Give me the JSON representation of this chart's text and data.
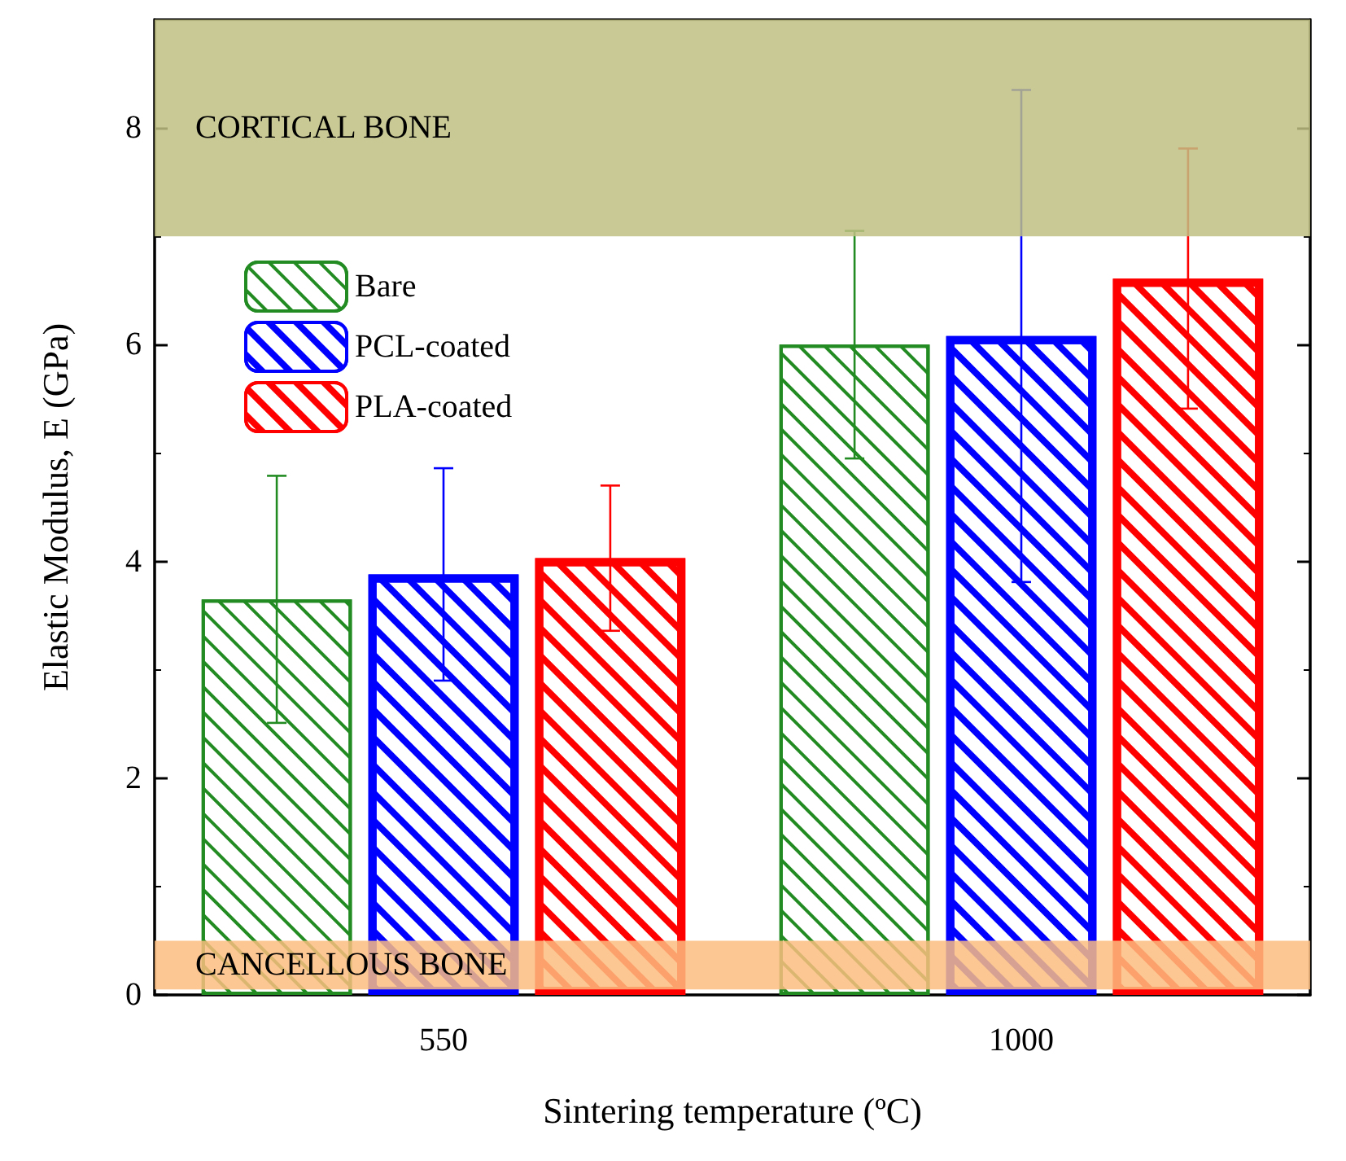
{
  "chart_data": {
    "type": "bar",
    "xlabel": "Sintering temperature (ºC)",
    "ylabel": "Elastic Modulus, E (GPa)",
    "categories": [
      "550",
      "1000"
    ],
    "series": [
      {
        "name": "Bare",
        "color": "#228b22",
        "values": [
          3.65,
          6.0
        ],
        "errors": [
          1.14,
          1.05
        ]
      },
      {
        "name": "PCL-coated",
        "color": "#0000ff",
        "values": [
          3.88,
          6.08
        ],
        "errors": [
          0.98,
          2.27
        ]
      },
      {
        "name": "PLA-coated",
        "color": "#ff0000",
        "values": [
          4.03,
          6.61
        ],
        "errors": [
          0.67,
          1.2
        ]
      }
    ],
    "ylim": [
      0,
      9
    ],
    "yticks": [
      0,
      2,
      4,
      6,
      8
    ],
    "grid": false,
    "legend": "top left",
    "bands": [
      {
        "axis": "y",
        "from": 7,
        "to": 9,
        "label": "CORTICAL BONE",
        "color": "#bfbf83"
      },
      {
        "axis": "y",
        "from": 0.05,
        "to": 0.5,
        "label": "CANCELLOUS BONE",
        "color": "#fbbd7f"
      }
    ]
  }
}
